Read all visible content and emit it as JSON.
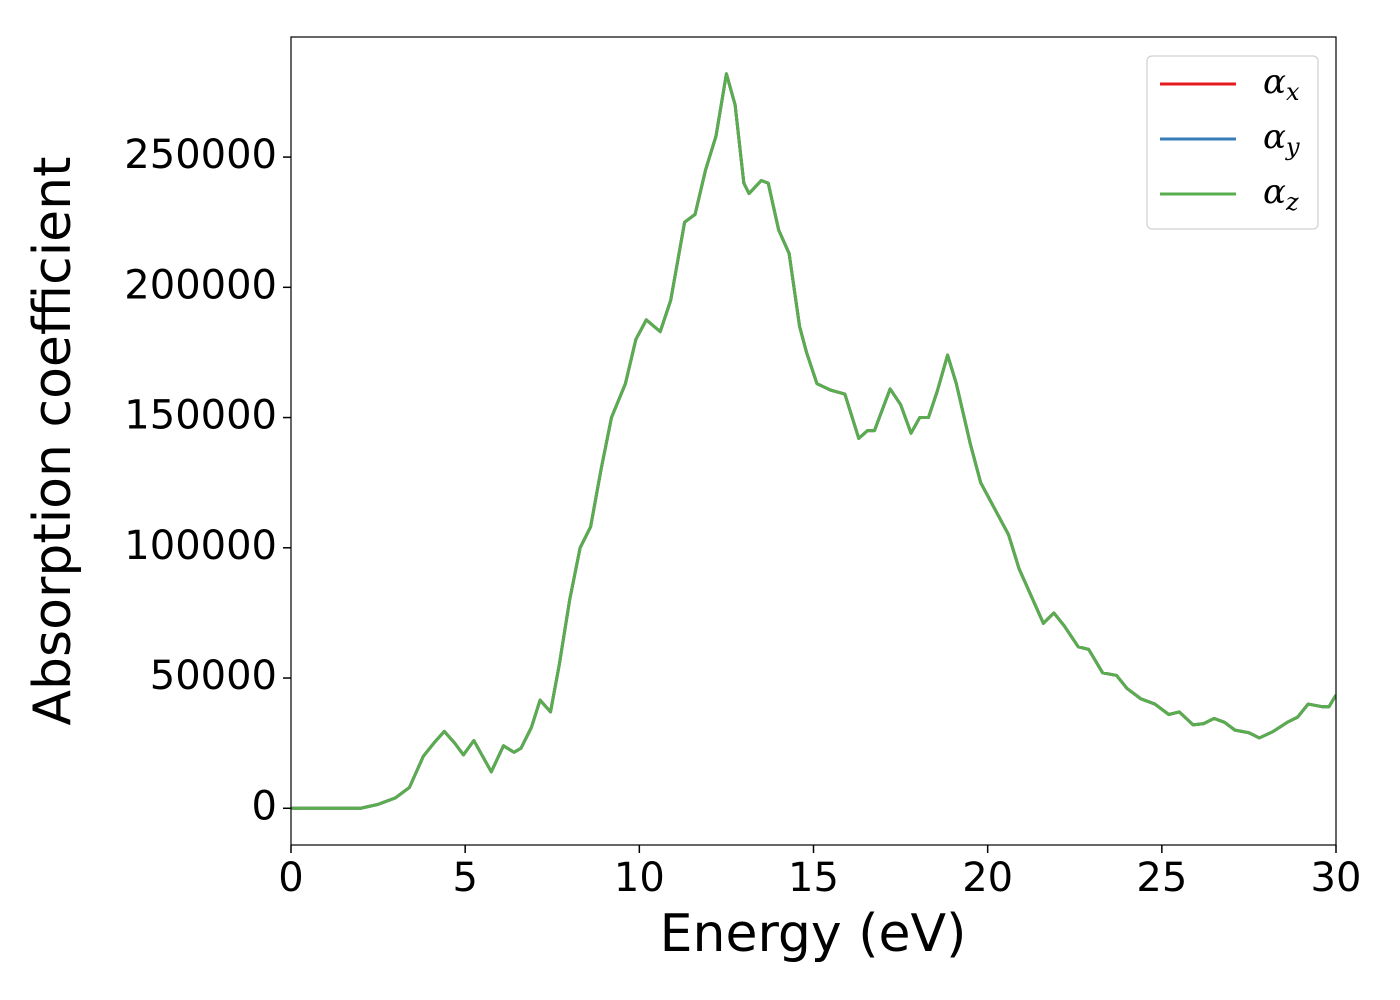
{
  "chart_data": {
    "type": "line",
    "xlabel": "Energy (eV)",
    "ylabel": "Absorption coefficient",
    "xlim": [
      0,
      30
    ],
    "ylim": [
      -14100,
      296100
    ],
    "xticks": [
      0,
      5,
      10,
      15,
      20,
      25,
      30
    ],
    "yticks": [
      0,
      50000,
      100000,
      150000,
      200000,
      250000
    ],
    "legend": "upper right",
    "grid": false,
    "x": [
      0,
      1,
      2,
      2.5,
      3,
      3.4,
      3.6,
      3.8,
      4.1,
      4.4,
      4.7,
      4.95,
      5.25,
      5.5,
      5.75,
      6.1,
      6.4,
      6.6,
      6.9,
      7.15,
      7.45,
      7.7,
      8.0,
      8.3,
      8.6,
      8.9,
      9.2,
      9.6,
      9.9,
      10.2,
      10.6,
      10.9,
      11.3,
      11.6,
      11.9,
      12.2,
      12.5,
      12.75,
      13.0,
      13.15,
      13.5,
      13.7,
      14.0,
      14.3,
      14.6,
      14.8,
      15.1,
      15.5,
      15.9,
      16.3,
      16.55,
      16.75,
      17.2,
      17.5,
      17.8,
      18.05,
      18.3,
      18.55,
      18.85,
      19.1,
      19.5,
      19.8,
      20.2,
      20.6,
      20.9,
      21.3,
      21.6,
      21.9,
      22.2,
      22.6,
      22.9,
      23.3,
      23.7,
      24.0,
      24.4,
      24.8,
      25.2,
      25.5,
      25.9,
      26.2,
      26.5,
      26.8,
      27.1,
      27.5,
      27.8,
      28.2,
      28.6,
      28.9,
      29.2,
      29.6,
      29.8,
      30
    ],
    "series": [
      {
        "name": "αx",
        "color": "#e41a1c",
        "values": [
          0,
          0,
          0,
          1500,
          4000,
          8000,
          14000,
          20000,
          25000,
          29500,
          25000,
          20500,
          26000,
          20000,
          14000,
          24000,
          21500,
          23000,
          31000,
          41500,
          37000,
          55000,
          80000,
          100000,
          108000,
          130000,
          150000,
          163000,
          180000,
          187500,
          183000,
          195000,
          225000,
          228000,
          245000,
          258000,
          282000,
          270000,
          240000,
          236000,
          241000,
          240000,
          222000,
          213000,
          185000,
          175000,
          163000,
          160500,
          159000,
          142000,
          145000,
          145000,
          161000,
          155000,
          144000,
          150000,
          150000,
          160000,
          174000,
          163000,
          140000,
          125000,
          115000,
          105000,
          92000,
          80000,
          71000,
          75000,
          70000,
          62000,
          61000,
          52000,
          51000,
          46000,
          42000,
          40000,
          36000,
          37000,
          32000,
          32500,
          34500,
          33000,
          30000,
          29000,
          27000,
          29500,
          33000,
          35000,
          40000,
          39000,
          39000,
          43500
        ]
      },
      {
        "name": "αy",
        "color": "#377eb8",
        "values": [
          0,
          0,
          0,
          1500,
          4000,
          8000,
          14000,
          20000,
          25000,
          29500,
          25000,
          20500,
          26000,
          20000,
          14000,
          24000,
          21500,
          23000,
          31000,
          41500,
          37000,
          55000,
          80000,
          100000,
          108000,
          130000,
          150000,
          163000,
          180000,
          187500,
          183000,
          195000,
          225000,
          228000,
          245000,
          258000,
          282000,
          270000,
          240000,
          236000,
          241000,
          240000,
          222000,
          213000,
          185000,
          175000,
          163000,
          160500,
          159000,
          142000,
          145000,
          145000,
          161000,
          155000,
          144000,
          150000,
          150000,
          160000,
          174000,
          163000,
          140000,
          125000,
          115000,
          105000,
          92000,
          80000,
          71000,
          75000,
          70000,
          62000,
          61000,
          52000,
          51000,
          46000,
          42000,
          40000,
          36000,
          37000,
          32000,
          32500,
          34500,
          33000,
          30000,
          29000,
          27000,
          29500,
          33000,
          35000,
          40000,
          39000,
          39000,
          43500
        ]
      },
      {
        "name": "αz",
        "color": "#5aad4e",
        "values": [
          0,
          0,
          0,
          1500,
          4000,
          8000,
          14000,
          20000,
          25000,
          29500,
          25000,
          20500,
          26000,
          20000,
          14000,
          24000,
          21500,
          23000,
          31000,
          41500,
          37000,
          55000,
          80000,
          100000,
          108000,
          130000,
          150000,
          163000,
          180000,
          187500,
          183000,
          195000,
          225000,
          228000,
          245000,
          258000,
          282000,
          270000,
          240000,
          236000,
          241000,
          240000,
          222000,
          213000,
          185000,
          175000,
          163000,
          160500,
          159000,
          142000,
          145000,
          145000,
          161000,
          155000,
          144000,
          150000,
          150000,
          160000,
          174000,
          163000,
          140000,
          125000,
          115000,
          105000,
          92000,
          80000,
          71000,
          75000,
          70000,
          62000,
          61000,
          52000,
          51000,
          46000,
          42000,
          40000,
          36000,
          37000,
          32000,
          32500,
          34500,
          33000,
          30000,
          29000,
          27000,
          29500,
          33000,
          35000,
          40000,
          39000,
          39000,
          43500
        ]
      }
    ]
  }
}
